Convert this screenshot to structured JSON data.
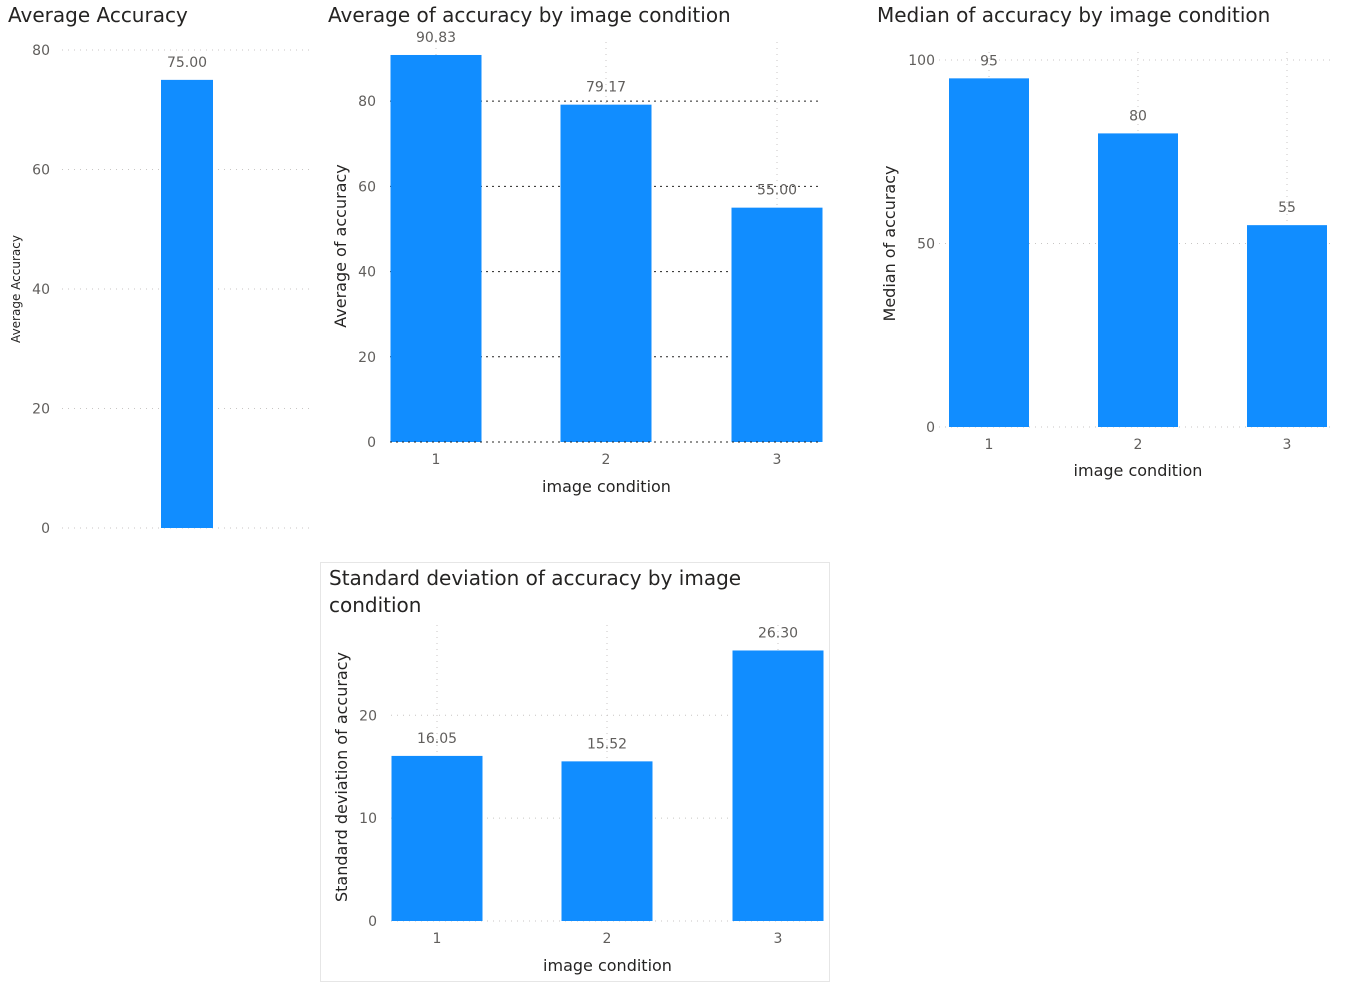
{
  "visuals": {
    "avg_accuracy": {
      "title": "Average Accuracy"
    },
    "avg_by_condition": {
      "title": "Average of accuracy by image condition"
    },
    "median_by_condition": {
      "title": "Median of accuracy by image condition"
    },
    "std_by_condition": {
      "title": "Standard deviation of accuracy by image condition"
    }
  },
  "colors": {
    "bar": "#118dff",
    "grid": "#c8c6c4",
    "text": "#605e5c"
  },
  "chart_data": [
    {
      "id": "avg_accuracy",
      "type": "bar",
      "title": "Average Accuracy",
      "xlabel": "",
      "ylabel": "Average Accuracy",
      "categories": [
        ""
      ],
      "values": [
        75.0
      ],
      "data_labels": [
        "75.00"
      ],
      "ylim": [
        0,
        80
      ],
      "yticks": [
        0,
        20,
        40,
        60,
        80
      ],
      "grid": true,
      "legend": "none"
    },
    {
      "id": "avg_by_condition",
      "type": "bar",
      "title": "Average of accuracy by image condition",
      "xlabel": "image condition",
      "ylabel": "Average of accuracy",
      "categories": [
        "1",
        "2",
        "3"
      ],
      "values": [
        90.83,
        79.17,
        55.0
      ],
      "data_labels": [
        "90.83",
        "79.17",
        "55.00"
      ],
      "ylim": [
        0,
        92
      ],
      "yticks": [
        0,
        20,
        40,
        60,
        80
      ],
      "grid": true,
      "legend": "none"
    },
    {
      "id": "median_by_condition",
      "type": "bar",
      "title": "Median of accuracy by image condition",
      "xlabel": "image condition",
      "ylabel": "Median of accuracy",
      "categories": [
        "1",
        "2",
        "3"
      ],
      "values": [
        95,
        80,
        55
      ],
      "data_labels": [
        "95",
        "80",
        "55"
      ],
      "ylim": [
        0,
        100
      ],
      "yticks": [
        0,
        50,
        100
      ],
      "grid": true,
      "legend": "none"
    },
    {
      "id": "std_by_condition",
      "type": "bar",
      "title": "Standard deviation of accuracy by image condition",
      "xlabel": "image condition",
      "ylabel": "Standard deviation of accuracy",
      "categories": [
        "1",
        "2",
        "3"
      ],
      "values": [
        16.05,
        15.52,
        26.3
      ],
      "data_labels": [
        "16.05",
        "15.52",
        "26.30"
      ],
      "ylim": [
        0,
        28
      ],
      "yticks": [
        0,
        10,
        20
      ],
      "grid": true,
      "legend": "none"
    }
  ]
}
